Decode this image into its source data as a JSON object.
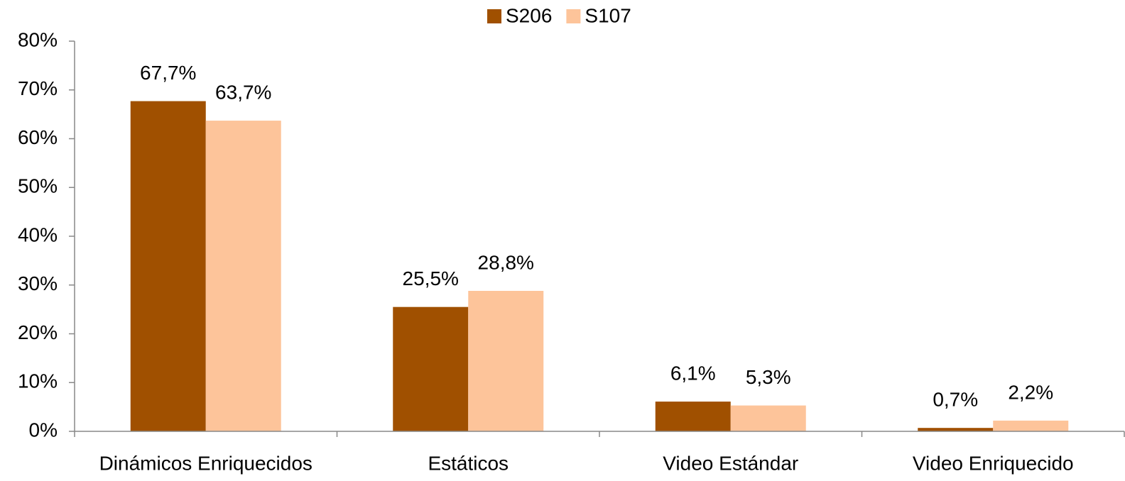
{
  "chart_data": {
    "type": "bar",
    "categories": [
      "Dinámicos Enriquecidos",
      "Estáticos",
      "Video Estándar",
      "Video Enriquecido"
    ],
    "series": [
      {
        "name": "S206",
        "color": "#a05000",
        "values": [
          67.7,
          25.5,
          6.1,
          0.7
        ],
        "value_labels": [
          "67,7%",
          "25,5%",
          "6,1%",
          "0,7%"
        ]
      },
      {
        "name": "S107",
        "color": "#fdc49a",
        "values": [
          63.7,
          28.8,
          5.3,
          2.2
        ],
        "value_labels": [
          "63,7%",
          "28,8%",
          "5,3%",
          "2,2%"
        ]
      }
    ],
    "ylim": [
      0,
      80
    ],
    "yticks": [
      {
        "value": 0,
        "label": "0%"
      },
      {
        "value": 10,
        "label": "10%"
      },
      {
        "value": 20,
        "label": "20%"
      },
      {
        "value": 30,
        "label": "30%"
      },
      {
        "value": 40,
        "label": "40%"
      },
      {
        "value": 50,
        "label": "50%"
      },
      {
        "value": 60,
        "label": "60%"
      },
      {
        "value": 70,
        "label": "70%"
      },
      {
        "value": 80,
        "label": "80%"
      }
    ],
    "grid": false,
    "legend": "top",
    "value_label_color": "#a0520a"
  }
}
